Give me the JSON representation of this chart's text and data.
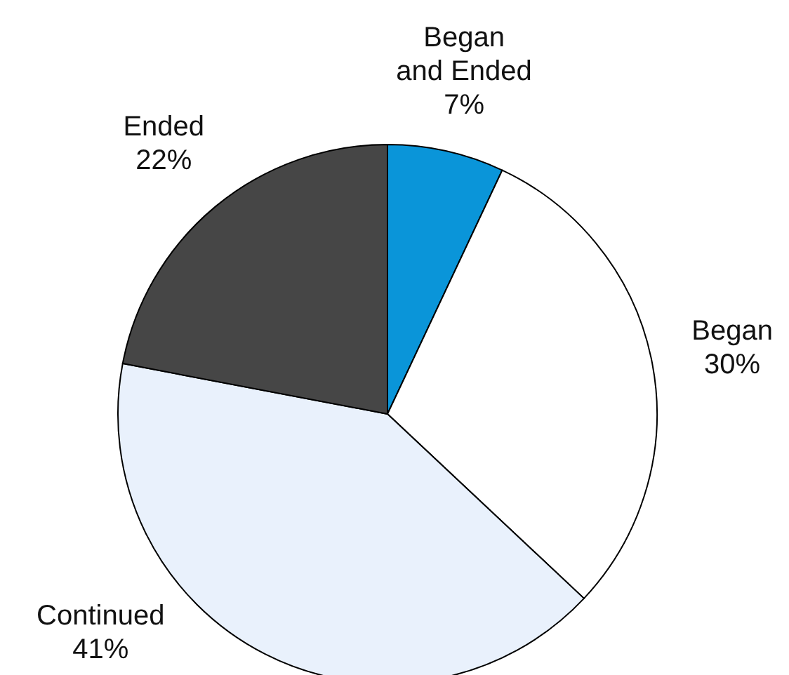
{
  "chart_data": {
    "type": "pie",
    "categories": [
      "Began and Ended",
      "Began",
      "Continued",
      "Ended"
    ],
    "values": [
      7,
      30,
      41,
      22
    ],
    "colors": [
      "#0a95d9",
      "#ffffff",
      "#e9f1fc",
      "#464646"
    ],
    "value_labels": [
      "7%",
      "30%",
      "41%",
      "22%"
    ]
  }
}
